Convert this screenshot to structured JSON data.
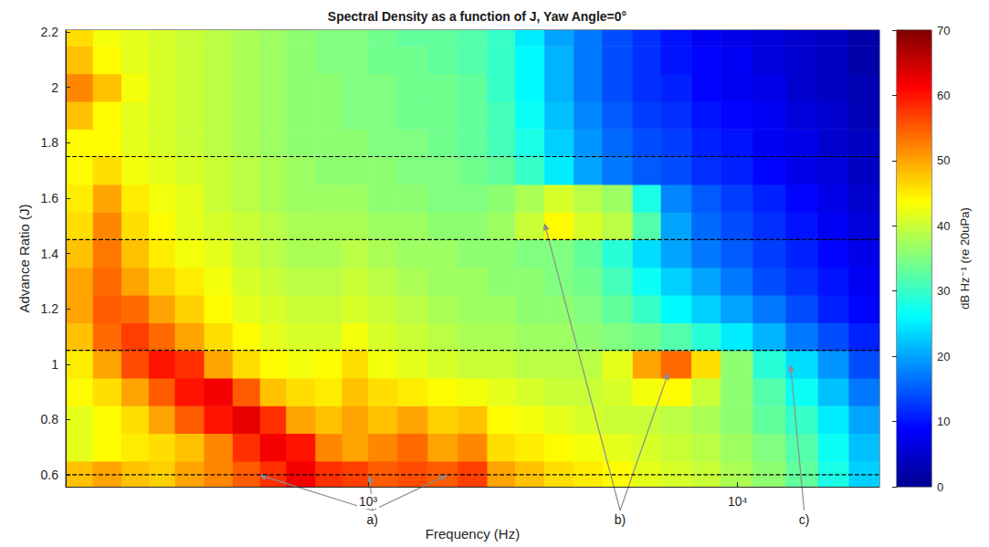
{
  "chart_data": {
    "type": "heatmap",
    "title": "Spectral Density as a function of J, Yaw Angle=0°",
    "x_label": "Frequency (Hz)",
    "y_label": "Advance Ratio (J)",
    "log": "x",
    "grid": false,
    "xlim": [
      152,
      24200
    ],
    "xticks": [
      {
        "value": 1000,
        "label": "10³"
      },
      {
        "value": 10000,
        "label": "10⁴"
      }
    ],
    "ylim": [
      0.557,
      2.207
    ],
    "yticks": [
      0.6,
      0.8,
      1,
      1.2,
      1.4,
      1.6,
      1.8,
      2,
      2.2
    ],
    "x_edges": [
      152,
      180,
      215,
      255,
      300,
      360,
      430,
      510,
      600,
      720,
      850,
      1000,
      1200,
      1450,
      1750,
      2100,
      2500,
      3000,
      3600,
      4300,
      5200,
      6200,
      7500,
      9000,
      11000,
      13500,
      16500,
      20000,
      24200
    ],
    "y_edges": [
      0.557,
      0.65,
      0.75,
      0.85,
      0.95,
      1.05,
      1.15,
      1.25,
      1.35,
      1.45,
      1.55,
      1.65,
      1.75,
      1.85,
      1.95,
      2.05,
      2.15,
      2.207
    ],
    "values": [
      [
        48,
        50,
        48,
        47,
        50,
        52,
        55,
        58,
        62,
        58,
        57,
        55,
        56,
        55,
        57,
        50,
        48,
        46,
        45,
        44,
        42,
        41,
        40,
        38,
        36,
        33,
        28,
        23
      ],
      [
        42,
        44,
        45,
        46,
        48,
        52,
        58,
        62,
        60,
        52,
        50,
        52,
        54,
        50,
        52,
        46,
        45,
        44,
        43,
        42,
        41,
        40,
        39,
        37,
        35,
        32,
        27,
        22
      ],
      [
        42,
        44,
        46,
        50,
        55,
        60,
        63,
        58,
        50,
        48,
        50,
        48,
        50,
        47,
        48,
        44,
        43,
        42,
        41,
        40,
        40,
        39,
        38,
        36,
        33,
        30,
        25,
        20
      ],
      [
        44,
        46,
        50,
        55,
        60,
        62,
        55,
        48,
        46,
        45,
        48,
        46,
        45,
        44,
        43,
        42,
        41,
        40,
        40,
        41,
        43,
        44,
        40,
        36,
        32,
        27,
        22,
        17
      ],
      [
        45,
        50,
        56,
        60,
        58,
        50,
        46,
        44,
        43,
        44,
        46,
        43,
        42,
        41,
        40,
        40,
        39,
        39,
        39,
        42,
        50,
        54,
        46,
        36,
        29,
        24,
        19,
        14
      ],
      [
        48,
        54,
        57,
        54,
        50,
        46,
        44,
        42,
        41,
        41,
        43,
        41,
        40,
        39,
        38,
        38,
        37,
        37,
        36,
        35,
        34,
        32,
        29,
        25,
        21,
        17,
        14,
        11
      ],
      [
        50,
        55,
        54,
        50,
        47,
        44,
        42,
        41,
        40,
        40,
        41,
        40,
        39,
        38,
        37,
        37,
        36,
        36,
        35,
        33,
        30,
        26,
        23,
        20,
        17,
        14,
        11,
        9
      ],
      [
        50,
        54,
        50,
        47,
        45,
        43,
        41,
        40,
        39,
        39,
        40,
        39,
        38,
        37,
        37,
        36,
        36,
        35,
        34,
        31,
        27,
        23,
        20,
        17,
        14,
        12,
        10,
        8
      ],
      [
        48,
        53,
        48,
        45,
        43,
        42,
        40,
        39,
        38,
        38,
        39,
        38,
        37,
        37,
        36,
        36,
        35,
        35,
        33,
        29,
        24,
        20,
        17,
        15,
        13,
        11,
        9,
        7
      ],
      [
        46,
        52,
        46,
        44,
        42,
        41,
        40,
        39,
        38,
        38,
        38,
        37,
        37,
        36,
        36,
        37,
        40,
        44,
        41,
        39,
        32,
        20,
        16,
        14,
        12,
        10,
        8,
        6
      ],
      [
        45,
        50,
        45,
        43,
        42,
        40,
        39,
        38,
        37,
        37,
        37,
        36,
        36,
        35,
        35,
        36,
        38,
        41,
        39,
        37,
        28,
        18,
        15,
        13,
        11,
        9,
        7,
        5
      ],
      [
        44,
        46,
        43,
        42,
        41,
        40,
        39,
        38,
        37,
        36,
        36,
        36,
        35,
        35,
        34,
        33,
        30,
        25,
        20,
        17,
        15,
        14,
        12,
        11,
        9,
        7,
        6,
        4
      ],
      [
        44,
        44,
        42,
        41,
        40,
        39,
        38,
        37,
        36,
        36,
        36,
        35,
        35,
        34,
        33,
        31,
        28,
        23,
        19,
        16,
        14,
        13,
        11,
        10,
        8,
        7,
        5,
        4
      ],
      [
        48,
        44,
        42,
        41,
        40,
        39,
        38,
        37,
        36,
        36,
        35,
        35,
        34,
        34,
        33,
        31,
        27,
        22,
        18,
        15,
        13,
        12,
        10,
        9,
        8,
        6,
        5,
        3
      ],
      [
        52,
        48,
        43,
        41,
        40,
        39,
        38,
        37,
        36,
        36,
        35,
        35,
        34,
        34,
        33,
        30,
        26,
        21,
        17,
        14,
        12,
        11,
        9,
        8,
        7,
        5,
        4,
        3
      ],
      [
        48,
        44,
        42,
        41,
        40,
        39,
        38,
        37,
        36,
        35,
        35,
        34,
        34,
        33,
        32,
        30,
        26,
        21,
        17,
        14,
        12,
        10,
        9,
        8,
        6,
        5,
        4,
        2
      ],
      [
        46,
        43,
        42,
        41,
        40,
        39,
        38,
        37,
        36,
        35,
        35,
        34,
        33,
        33,
        32,
        30,
        25,
        20,
        17,
        14,
        12,
        10,
        8,
        7,
        6,
        5,
        4,
        2
      ]
    ],
    "colorbar": {
      "label": "dB Hz⁻¹ (re 20uPa)",
      "range": [
        0,
        70
      ],
      "ticks": [
        0,
        10,
        20,
        30,
        40,
        50,
        60,
        70
      ]
    },
    "dashed_lines": [
      0.6,
      1.05,
      1.45,
      1.75
    ],
    "annotations": [
      {
        "text": "a)",
        "targets": [
          [
            506,
            0.6
          ],
          [
            1010,
            0.6
          ],
          [
            1640,
            0.6
          ]
        ]
      },
      {
        "text": "b)",
        "targets": [
          [
            3000,
            1.51
          ],
          [
            6500,
            0.97
          ]
        ]
      },
      {
        "text": "c)",
        "targets": [
          [
            13900,
            1.0
          ]
        ]
      }
    ]
  }
}
